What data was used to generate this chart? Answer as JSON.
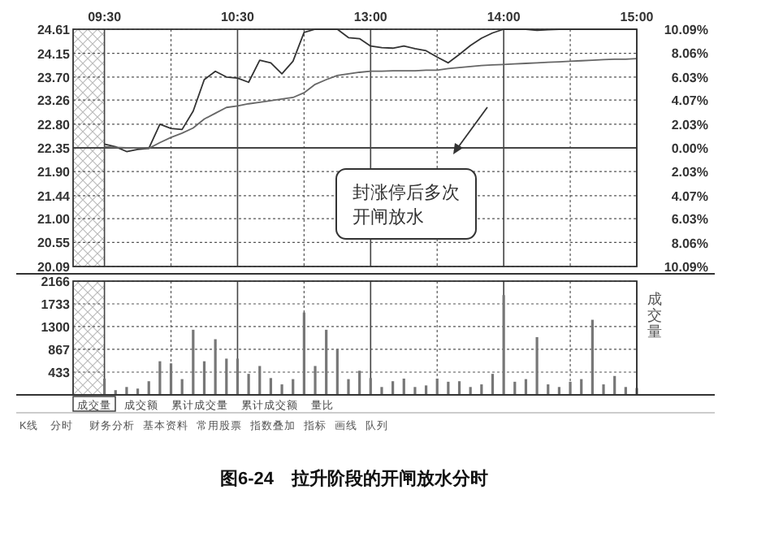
{
  "chart_data": [
    {
      "type": "line",
      "title": "图6-24　拉升阶段的开闸放水分时",
      "marker": "none",
      "line_style": "solid",
      "grid": true,
      "categories": [
        "09:30",
        null,
        null,
        null,
        null,
        null,
        null,
        null,
        null,
        null,
        null,
        null,
        "10:30",
        null,
        null,
        null,
        null,
        null,
        null,
        null,
        null,
        null,
        null,
        null,
        "13:00",
        null,
        null,
        null,
        null,
        null,
        null,
        null,
        null,
        null,
        null,
        null,
        "14:00",
        null,
        null,
        null,
        null,
        null,
        null,
        null,
        null,
        null,
        null,
        null,
        "15:00"
      ],
      "series": [
        {
          "color": "#333333",
          "values": [
            22.42,
            22.37,
            22.28,
            22.32,
            22.34,
            22.8,
            22.72,
            22.7,
            23.05,
            23.65,
            23.81,
            23.7,
            23.68,
            23.6,
            24.02,
            23.97,
            23.76,
            24.0,
            24.55,
            24.61,
            24.61,
            24.61,
            24.45,
            24.43,
            24.29,
            24.26,
            24.25,
            24.29,
            24.24,
            24.2,
            24.08,
            23.97,
            24.13,
            24.3,
            24.44,
            24.54,
            24.61,
            24.61,
            24.61,
            24.59,
            24.6,
            24.61,
            24.61,
            24.61,
            24.61,
            24.61,
            24.61,
            24.61,
            24.61
          ]
        },
        {
          "color": "#666666",
          "values": [
            22.37,
            22.36,
            22.35,
            22.35,
            22.34,
            22.45,
            22.55,
            22.63,
            22.73,
            22.9,
            23.01,
            23.12,
            23.15,
            23.19,
            23.22,
            23.25,
            23.28,
            23.31,
            23.4,
            23.56,
            23.65,
            23.73,
            23.76,
            23.79,
            23.81,
            23.81,
            23.82,
            23.82,
            23.82,
            23.83,
            23.83,
            23.86,
            23.88,
            23.9,
            23.92,
            23.93,
            23.94,
            23.95,
            23.96,
            23.97,
            23.98,
            23.99,
            24.0,
            24.01,
            24.02,
            24.03,
            24.04,
            24.04,
            24.05
          ]
        }
      ],
      "ylim": [
        20.09,
        24.61
      ],
      "yticks": [
        20.09,
        20.55,
        {
          "value": 21.0,
          "label": "21.00"
        },
        21.44,
        {
          "value": 21.9,
          "label": "21.90"
        },
        22.35,
        {
          "value": 22.8,
          "label": "22.80"
        },
        23.26,
        {
          "value": 23.7,
          "label": "23.70"
        },
        24.15,
        24.61
      ],
      "y2lim": [
        -10.09,
        10.09
      ],
      "y2ticks": [
        {
          "value": -10.09,
          "label": "10.09%"
        },
        {
          "value": -8.06,
          "label": "8.06%"
        },
        {
          "value": -6.03,
          "label": "6.03%"
        },
        {
          "value": -4.07,
          "label": "4.07%"
        },
        {
          "value": -2.03,
          "label": "2.03%"
        },
        {
          "value": 0,
          "label": "0.00%"
        },
        {
          "value": 2.03,
          "label": "2.03%"
        },
        {
          "value": 4.07,
          "label": "4.07%"
        },
        {
          "value": 6.03,
          "label": "6.03%"
        },
        {
          "value": 8.06,
          "label": "8.06%"
        },
        {
          "value": 10.09,
          "label": "10.09%"
        }
      ],
      "ref_lines": [
        {
          "axis": "y",
          "value": 22.35,
          "color": "#444444"
        }
      ],
      "annotations": [
        "封涨停后多次开闸放水"
      ]
    },
    {
      "type": "bar",
      "color": "#777777",
      "grid": true,
      "tick_labels": "y",
      "y2label": "成交量",
      "categories": [
        null,
        null,
        null,
        null,
        null,
        null,
        null,
        null,
        null,
        null,
        null,
        null,
        null,
        null,
        null,
        null,
        null,
        null,
        null,
        null,
        null,
        null,
        null,
        null,
        null,
        null,
        null,
        null,
        null,
        null,
        null,
        null,
        null,
        null,
        null,
        null,
        null,
        null,
        null,
        null,
        null,
        null,
        null,
        null,
        null,
        null,
        null,
        null,
        null
      ],
      "values": [
        310,
        90,
        150,
        120,
        260,
        640,
        600,
        300,
        1240,
        640,
        1060,
        690,
        690,
        400,
        550,
        320,
        200,
        300,
        1570,
        550,
        1240,
        870,
        300,
        460,
        320,
        150,
        260,
        310,
        150,
        180,
        310,
        250,
        260,
        150,
        200,
        400,
        1900,
        250,
        300,
        1100,
        200,
        150,
        250,
        300,
        1430,
        200,
        360,
        150,
        130
      ],
      "ylim": [
        0,
        2166
      ],
      "yticks": [
        433,
        867,
        1300,
        1733,
        2166
      ],
      "annotations": [
        "成交量",
        "成交额",
        "累计成交量",
        "累计成交额",
        "量比",
        "K线",
        "分时",
        "财务分析",
        "基本资料",
        "常用股票",
        "指数叠加",
        "指标",
        "画线",
        "队列"
      ]
    }
  ]
}
